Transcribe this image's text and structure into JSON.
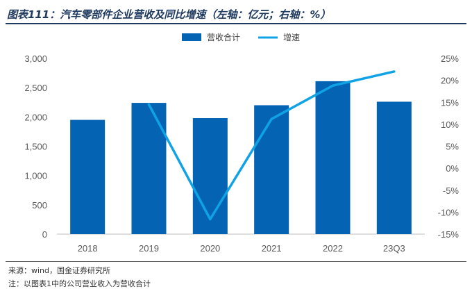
{
  "title": "图表111：汽车零部件企业营收及同比增速（左轴：亿元；右轴：%）",
  "source": "来源：wind，国金证券研究所",
  "note": "注：以图表1中的公司营业收入为营收合计",
  "colors": {
    "bar": "#0563B4",
    "line": "#0FA3E6",
    "title": "#1f3a5f"
  },
  "chart_data": {
    "type": "bar",
    "categories": [
      "2018",
      "2019",
      "2020",
      "2021",
      "2022",
      "23Q3"
    ],
    "series": [
      {
        "name": "营收合计",
        "type": "bar",
        "axis": "left",
        "values": [
          1950,
          2240,
          1980,
          2200,
          2610,
          2260
        ]
      },
      {
        "name": "增速",
        "type": "line",
        "axis": "right",
        "values": [
          null,
          14.5,
          -11.6,
          11.2,
          18.8,
          22.0
        ]
      }
    ],
    "y_left": {
      "min": 0,
      "max": 3000,
      "ticks": [
        "0",
        "500",
        "1,000",
        "1,500",
        "2,000",
        "2,500",
        "3,000"
      ]
    },
    "y_right": {
      "min": -15,
      "max": 25,
      "ticks": [
        "-15%",
        "-10%",
        "-5%",
        "0%",
        "5%",
        "10%",
        "15%",
        "20%",
        "25%"
      ]
    },
    "legend_position": "top-center",
    "grid": false
  }
}
